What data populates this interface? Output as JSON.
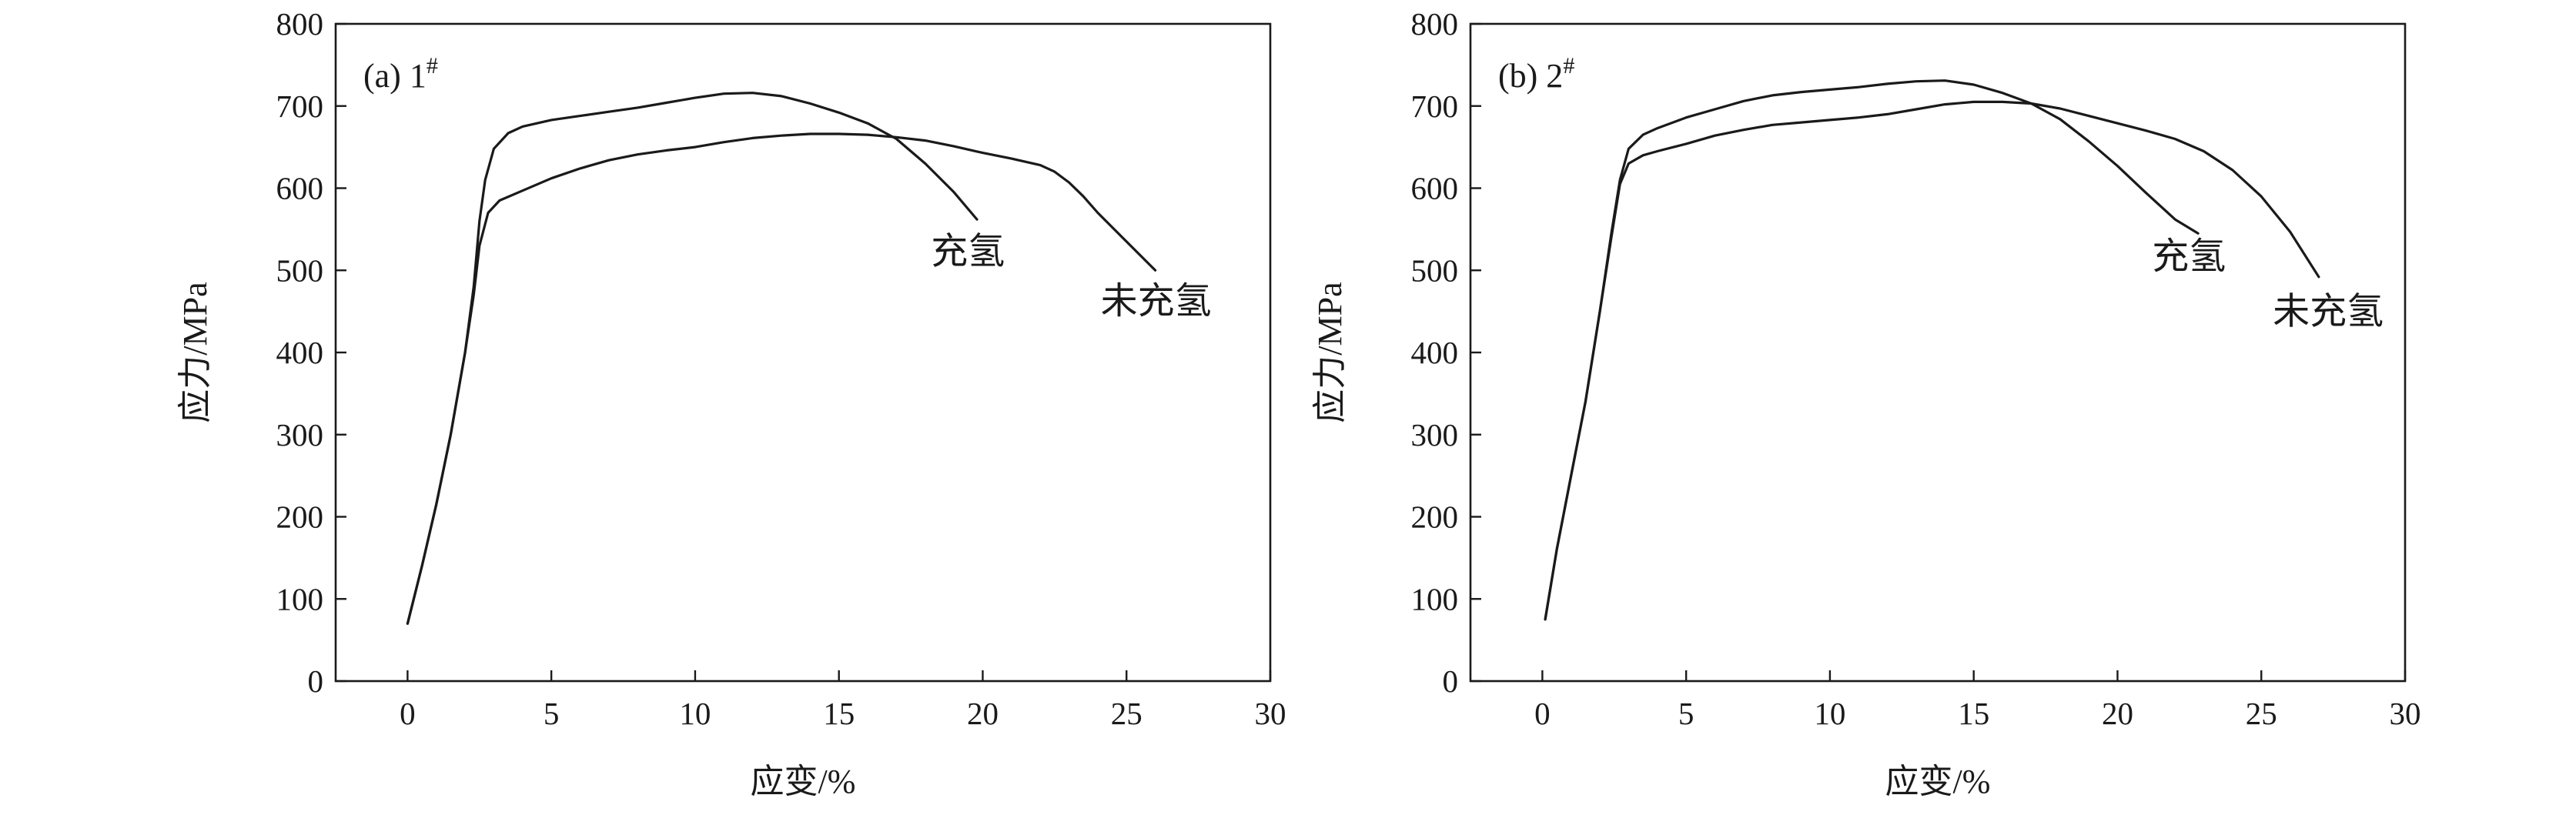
{
  "chart_data": [
    {
      "type": "line",
      "panel_label": "(a) 1",
      "panel_label_sup": "#",
      "xlabel": "应变/%",
      "ylabel": "应力/MPa",
      "xlim": [
        -2.5,
        30
      ],
      "ylim": [
        0,
        800
      ],
      "x_ticks": [
        0,
        5,
        10,
        15,
        20,
        25,
        30
      ],
      "y_ticks": [
        0,
        100,
        200,
        300,
        400,
        500,
        600,
        700,
        800
      ],
      "grid": false,
      "series": [
        {
          "name": "未充氢",
          "x": [
            0,
            0.5,
            1,
            1.5,
            2,
            2.3,
            2.5,
            2.8,
            3.2,
            4,
            5,
            6,
            7,
            8,
            9,
            10,
            11,
            12,
            13,
            14,
            15,
            16,
            17,
            18,
            19,
            20,
            21,
            22,
            22.5,
            23,
            23.5,
            24,
            25,
            26
          ],
          "y": [
            70,
            140,
            215,
            300,
            400,
            470,
            530,
            570,
            585,
            597,
            612,
            624,
            634,
            641,
            646,
            650,
            656,
            661,
            664,
            666,
            666,
            665,
            662,
            658,
            651,
            643,
            636,
            628,
            620,
            607,
            590,
            570,
            535,
            500
          ]
        },
        {
          "name": "充氢",
          "x": [
            0,
            0.5,
            1,
            1.5,
            2,
            2.3,
            2.5,
            2.7,
            3,
            3.5,
            4,
            5,
            6,
            7,
            8,
            9,
            10,
            11,
            12,
            13,
            14,
            15,
            16,
            17,
            18,
            19,
            19.8
          ],
          "y": [
            70,
            140,
            215,
            300,
            400,
            480,
            560,
            610,
            648,
            667,
            675,
            683,
            688,
            693,
            698,
            704,
            710,
            715,
            716,
            712,
            703,
            692,
            679,
            660,
            630,
            595,
            562
          ]
        }
      ],
      "annotations": [
        {
          "text": "充氢",
          "series": "充氢",
          "x": 18.2,
          "y": 508
        },
        {
          "text": "未充氢",
          "series": "未充氢",
          "x": 24.1,
          "y": 448
        }
      ]
    },
    {
      "type": "line",
      "panel_label": "(b) 2",
      "panel_label_sup": "#",
      "xlabel": "应变/%",
      "ylabel": "应力/MPa",
      "xlim": [
        -2.5,
        30
      ],
      "ylim": [
        0,
        800
      ],
      "x_ticks": [
        0,
        5,
        10,
        15,
        20,
        25,
        30
      ],
      "y_ticks": [
        0,
        100,
        200,
        300,
        400,
        500,
        600,
        700,
        800
      ],
      "grid": false,
      "series": [
        {
          "name": "未充氢",
          "x": [
            0.1,
            0.5,
            1,
            1.5,
            2,
            2.4,
            2.7,
            3,
            3.5,
            4,
            5,
            6,
            7,
            8,
            9,
            10,
            11,
            12,
            13,
            14,
            15,
            16,
            17,
            18,
            19,
            20,
            21,
            22,
            23,
            24,
            25,
            26,
            27
          ],
          "y": [
            75,
            160,
            250,
            340,
            450,
            540,
            605,
            630,
            640,
            645,
            654,
            664,
            671,
            677,
            680,
            683,
            686,
            690,
            696,
            702,
            705,
            705,
            703,
            697,
            688,
            679,
            670,
            660,
            645,
            622,
            590,
            547,
            492
          ]
        },
        {
          "name": "充氢",
          "x": [
            0.1,
            0.5,
            1,
            1.5,
            2,
            2.4,
            2.7,
            3,
            3.5,
            4,
            5,
            6,
            7,
            8,
            9,
            10,
            11,
            12,
            13,
            14,
            15,
            16,
            17,
            18,
            19,
            20,
            21,
            22,
            22.8
          ],
          "y": [
            75,
            160,
            250,
            340,
            450,
            545,
            610,
            648,
            665,
            673,
            686,
            696,
            706,
            713,
            717,
            720,
            723,
            727,
            730,
            731,
            726,
            716,
            703,
            684,
            657,
            627,
            594,
            562,
            545
          ]
        }
      ],
      "annotations": [
        {
          "text": "充氢",
          "series": "充氢",
          "x": 21.2,
          "y": 502
        },
        {
          "text": "未充氢",
          "series": "未充氢",
          "x": 25.4,
          "y": 435
        }
      ]
    }
  ]
}
